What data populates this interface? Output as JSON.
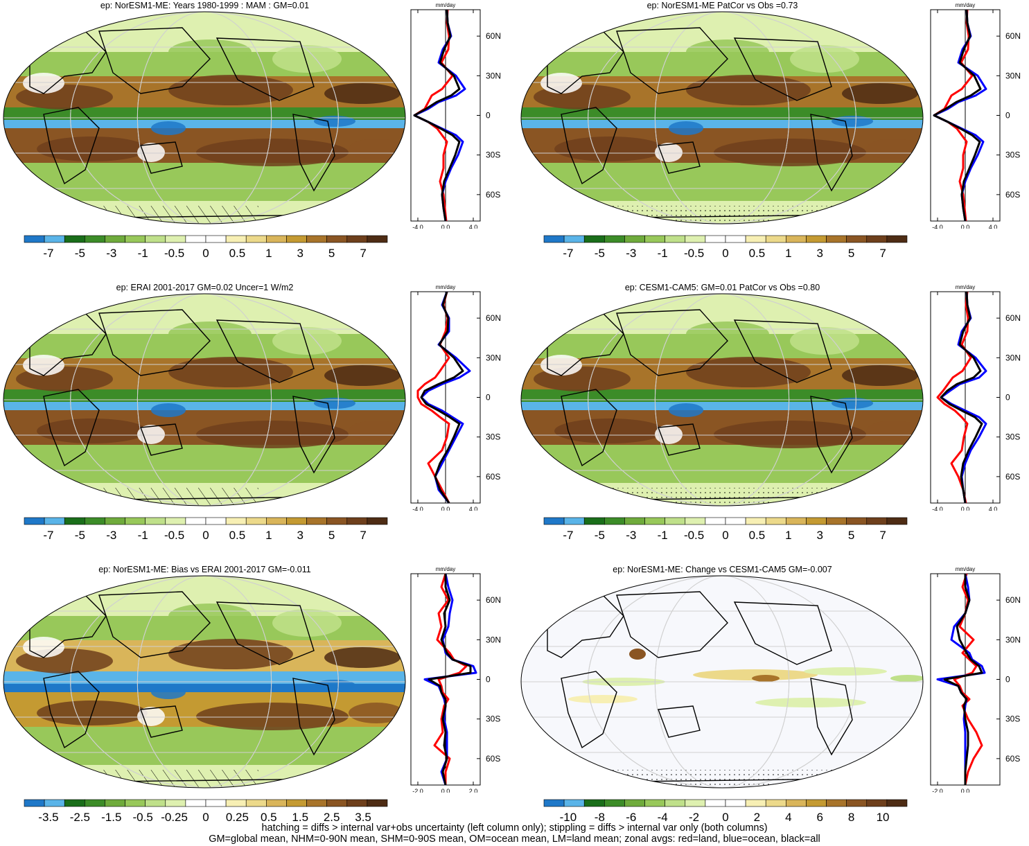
{
  "footer": {
    "line1": "hatching = diffs > internal var+obs uncertainty (left column only); stippling = diffs > internal var only (both columns)",
    "line2": "GM=global mean, NHM=0-90N mean, SHM=0-90S mean, OM=ocean mean, LM=land mean; zonal avgs: red=land, blue=ocean, black=all"
  },
  "colors": {
    "land_line": "#ff0000",
    "ocean_line": "#0000ff",
    "all_line": "#000000",
    "scale": [
      "#1f78c8",
      "#5ab4e8",
      "#1a6e1a",
      "#3c8c28",
      "#6fab3c",
      "#98c85a",
      "#bfe08a",
      "#def0b0",
      "#ffffff",
      "#ffffff",
      "#f7efb4",
      "#ecd98a",
      "#d9b55a",
      "#c49a32",
      "#a8742a",
      "#8a5523",
      "#6e3f1c",
      "#4e2c14"
    ]
  },
  "chart_data": [
    {
      "type": "heatmap",
      "title": "ep: NorESM1-ME: Years 1980-1999 : MAM : GM=0.01",
      "colorbar_labels": [
        "-7",
        "-5",
        "-3",
        "-1",
        "-0.5",
        "0",
        "0.5",
        "1",
        "3",
        "5",
        "7"
      ],
      "zonal_plot": {
        "unit": "mm/day",
        "x_ticks": [
          "-4.0",
          "0.0",
          "4.0"
        ],
        "y_ticks": [
          "60N",
          "30N",
          "0",
          "30S",
          "60S"
        ],
        "xlim": [
          -5,
          5
        ],
        "ylim": [
          -80,
          80
        ],
        "latitudes": [
          80,
          70,
          60,
          50,
          40,
          30,
          20,
          15,
          10,
          5,
          0,
          -5,
          -10,
          -15,
          -20,
          -30,
          -40,
          -50,
          -60,
          -70,
          -80
        ],
        "series": [
          {
            "name": "land",
            "values": [
              0.3,
              0.2,
              0.5,
              0.4,
              -0.6,
              1.0,
              -0.5,
              -2.0,
              -2.5,
              -3.0,
              -4.5,
              -2.5,
              -1.2,
              -0.5,
              0.2,
              -0.3,
              -0.3,
              -0.8,
              -0.3,
              -0.1,
              0.1
            ]
          },
          {
            "name": "ocean",
            "values": [
              0.2,
              0.3,
              0.8,
              -0.4,
              -1.0,
              1.5,
              2.8,
              1.5,
              -1.0,
              -2.5,
              -4.5,
              -2.5,
              -0.5,
              1.5,
              2.5,
              1.8,
              0.8,
              0.0,
              -0.5,
              -0.3,
              0.0
            ]
          },
          {
            "name": "all",
            "values": [
              0.2,
              0.3,
              0.7,
              -0.2,
              -0.8,
              1.2,
              2.0,
              0.8,
              -1.3,
              -2.8,
              -4.5,
              -2.5,
              -0.7,
              1.0,
              2.0,
              1.4,
              0.6,
              -0.2,
              -0.5,
              -0.3,
              0.0
            ]
          }
        ]
      }
    },
    {
      "type": "heatmap",
      "title": "ep: NorESM1-ME PatCor vs Obs =0.73",
      "colorbar_labels": [
        "-7",
        "-5",
        "-3",
        "-1",
        "-0.5",
        "0",
        "0.5",
        "1",
        "3",
        "5",
        "7"
      ],
      "zonal_plot": {
        "unit": "mm/day",
        "x_ticks": [
          "-4.0",
          "0.0",
          "4.0"
        ],
        "y_ticks": [
          "60N",
          "30N",
          "0",
          "30S",
          "60S"
        ],
        "xlim": [
          -5,
          5
        ],
        "ylim": [
          -80,
          80
        ],
        "latitudes": [
          80,
          70,
          60,
          50,
          40,
          30,
          20,
          15,
          10,
          5,
          0,
          -5,
          -10,
          -15,
          -20,
          -30,
          -40,
          -50,
          -60,
          -70,
          -80
        ],
        "series": [
          {
            "name": "land",
            "values": [
              0.3,
              0.2,
              0.5,
              0.4,
              -0.6,
              1.0,
              -0.5,
              -2.0,
              -2.5,
              -3.0,
              -4.5,
              -2.5,
              -1.2,
              -0.5,
              0.2,
              -0.3,
              -0.3,
              -0.8,
              -0.3,
              -0.1,
              0.1
            ]
          },
          {
            "name": "ocean",
            "values": [
              0.2,
              0.3,
              0.8,
              -0.4,
              -1.0,
              1.8,
              3.0,
              1.5,
              -1.0,
              -2.5,
              -4.5,
              -2.5,
              -0.5,
              1.5,
              2.6,
              1.8,
              0.8,
              0.0,
              -0.5,
              -0.3,
              0.0
            ]
          },
          {
            "name": "all",
            "values": [
              0.2,
              0.3,
              0.7,
              -0.2,
              -0.8,
              1.3,
              2.2,
              0.8,
              -1.3,
              -2.8,
              -4.5,
              -2.5,
              -0.7,
              1.0,
              2.1,
              1.4,
              0.6,
              -0.2,
              -0.5,
              -0.3,
              0.0
            ]
          }
        ]
      }
    },
    {
      "type": "heatmap",
      "title": "ep: ERAI 2001-2017 GM=0.02 Uncer=1 W/m2",
      "colorbar_labels": [
        "-7",
        "-5",
        "-3",
        "-1",
        "-0.5",
        "0",
        "0.5",
        "1",
        "3",
        "5",
        "7"
      ],
      "zonal_plot": {
        "unit": "mm/day",
        "x_ticks": [
          "-4.0",
          "0.0",
          "4.0"
        ],
        "y_ticks": [
          "60N",
          "30N",
          "0",
          "30S",
          "60S"
        ],
        "xlim": [
          -5,
          5
        ],
        "ylim": [
          -80,
          80
        ],
        "latitudes": [
          80,
          70,
          60,
          50,
          40,
          30,
          20,
          15,
          10,
          5,
          0,
          -5,
          -10,
          -15,
          -20,
          -30,
          -40,
          -50,
          -60,
          -70,
          -80
        ],
        "series": [
          {
            "name": "land",
            "values": [
              0.2,
              -0.3,
              0.3,
              0.0,
              -0.8,
              0.5,
              -0.8,
              -1.5,
              -3.0,
              -4.0,
              -4.0,
              -3.5,
              -2.0,
              -0.8,
              0.5,
              0.2,
              -0.5,
              -2.5,
              -1.5,
              -0.5,
              0.5
            ]
          },
          {
            "name": "ocean",
            "values": [
              0.2,
              -0.5,
              0.5,
              0.5,
              -1.0,
              1.5,
              3.5,
              2.0,
              -0.5,
              -2.5,
              -3.5,
              -2.5,
              -0.5,
              1.0,
              2.5,
              1.5,
              0.5,
              -0.5,
              -1.5,
              -1.0,
              0.5
            ]
          },
          {
            "name": "all",
            "values": [
              0.2,
              -0.4,
              0.4,
              0.3,
              -0.9,
              1.2,
              2.5,
              1.2,
              -1.0,
              -3.0,
              -3.5,
              -2.8,
              -1.0,
              0.6,
              2.0,
              1.2,
              0.3,
              -0.8,
              -1.5,
              -0.8,
              0.5
            ]
          }
        ]
      }
    },
    {
      "type": "heatmap",
      "title": "ep: CESM1-CAM5: GM=0.01 PatCor vs Obs =0.80",
      "colorbar_labels": [
        "-7",
        "-5",
        "-3",
        "-1",
        "-0.5",
        "0",
        "0.5",
        "1",
        "3",
        "5",
        "7"
      ],
      "zonal_plot": {
        "unit": "mm/day",
        "x_ticks": [
          "-4.0",
          "0.0",
          "4.0"
        ],
        "y_ticks": [
          "60N",
          "30N",
          "0",
          "30S",
          "60S"
        ],
        "xlim": [
          -5,
          5
        ],
        "ylim": [
          -80,
          80
        ],
        "latitudes": [
          80,
          70,
          60,
          50,
          40,
          30,
          20,
          15,
          10,
          5,
          0,
          -5,
          -10,
          -15,
          -20,
          -30,
          -40,
          -50,
          -60,
          -70,
          -80
        ],
        "series": [
          {
            "name": "land",
            "values": [
              0.3,
              0.1,
              0.4,
              0.3,
              -0.5,
              0.8,
              -0.4,
              -1.8,
              -2.5,
              -3.2,
              -4.0,
              -3.0,
              -1.5,
              -0.5,
              0.3,
              -0.2,
              -0.5,
              -2.0,
              -1.0,
              -0.3,
              0.1
            ]
          },
          {
            "name": "ocean",
            "values": [
              0.2,
              0.3,
              0.8,
              -0.5,
              -1.0,
              1.5,
              3.0,
              2.0,
              -0.8,
              -2.2,
              -3.5,
              -2.0,
              0.0,
              2.0,
              3.0,
              2.0,
              0.8,
              0.0,
              -0.5,
              -0.3,
              0.0
            ]
          },
          {
            "name": "all",
            "values": [
              0.2,
              0.3,
              0.7,
              -0.3,
              -0.8,
              1.2,
              2.2,
              1.2,
              -1.2,
              -2.6,
              -3.5,
              -2.3,
              -0.5,
              1.4,
              2.4,
              1.5,
              0.5,
              -0.3,
              -0.6,
              -0.3,
              0.0
            ]
          }
        ]
      }
    },
    {
      "type": "heatmap",
      "title": "ep: NorESM1-ME: Bias vs ERAI 2001-2017 GM=-0.011",
      "colorbar_labels": [
        "-3.5",
        "-2.5",
        "-1.5",
        "-0.5",
        "-0.25",
        "0",
        "0.25",
        "0.5",
        "1.5",
        "2.5",
        "3.5"
      ],
      "zonal_plot": {
        "unit": "mm/day",
        "x_ticks": [
          "-2.0",
          "0.0",
          "2.0"
        ],
        "y_ticks": [
          "60N",
          "30N",
          "0",
          "30S",
          "60S"
        ],
        "xlim": [
          -2.5,
          2.5
        ],
        "ylim": [
          -80,
          80
        ],
        "latitudes": [
          80,
          70,
          60,
          50,
          40,
          30,
          20,
          15,
          10,
          5,
          0,
          -5,
          -10,
          -15,
          -20,
          -30,
          -40,
          -50,
          -60,
          -70,
          -80
        ],
        "series": [
          {
            "name": "land",
            "values": [
              0.0,
              -0.3,
              0.2,
              -0.5,
              -0.3,
              -0.6,
              0.3,
              0.6,
              1.5,
              1.0,
              -0.5,
              -0.3,
              -0.2,
              0.2,
              -0.1,
              -0.3,
              -0.2,
              -0.8,
              0.3,
              0.0,
              0.0
            ]
          },
          {
            "name": "ocean",
            "values": [
              0.0,
              0.2,
              0.5,
              0.3,
              0.2,
              -0.2,
              0.0,
              0.5,
              2.0,
              2.2,
              -1.5,
              -0.5,
              -0.3,
              -0.1,
              0.0,
              -0.1,
              0.1,
              0.1,
              0.1,
              -0.3,
              0.0
            ]
          },
          {
            "name": "all",
            "values": [
              0.0,
              0.0,
              0.3,
              -0.1,
              0.0,
              -0.3,
              0.1,
              0.5,
              1.8,
              1.8,
              -1.2,
              -0.4,
              -0.3,
              0.0,
              0.0,
              -0.2,
              0.0,
              -0.1,
              0.1,
              -0.2,
              0.0
            ]
          }
        ]
      }
    },
    {
      "type": "heatmap",
      "title": "ep: NorESM1-ME: Change vs CESM1-CAM5 GM=-0.007",
      "colorbar_labels": [
        "-10",
        "-8",
        "-6",
        "-4",
        "-2",
        "0",
        "2",
        "4",
        "6",
        "8",
        "10"
      ],
      "zonal_plot": {
        "unit": "mm/day",
        "x_ticks": [
          "-2.0",
          "0.0"
        ],
        "y_ticks": [
          "60N",
          "30N",
          "0",
          "30S",
          "60S"
        ],
        "xlim": [
          -2.5,
          2.5
        ],
        "ylim": [
          -80,
          80
        ],
        "latitudes": [
          80,
          70,
          60,
          50,
          40,
          30,
          20,
          15,
          10,
          5,
          0,
          -5,
          -10,
          -15,
          -20,
          -30,
          -40,
          -50,
          -60,
          -70,
          -80
        ],
        "series": [
          {
            "name": "land",
            "values": [
              0.1,
              -0.2,
              0.2,
              0.0,
              -0.4,
              0.6,
              -0.2,
              0.3,
              0.8,
              0.5,
              -0.8,
              -0.4,
              -0.2,
              0.3,
              -0.2,
              0.2,
              0.8,
              1.2,
              0.6,
              0.2,
              0.0
            ]
          },
          {
            "name": "ocean",
            "values": [
              0.0,
              0.2,
              0.3,
              0.0,
              -0.8,
              -1.0,
              0.3,
              0.5,
              1.2,
              1.4,
              -2.0,
              -0.5,
              -0.3,
              0.1,
              0.0,
              -0.1,
              0.0,
              0.0,
              0.0,
              0.0,
              0.0
            ]
          },
          {
            "name": "all",
            "values": [
              0.0,
              0.0,
              0.3,
              0.0,
              -0.6,
              -0.4,
              0.1,
              0.4,
              1.0,
              1.2,
              -1.5,
              -0.5,
              -0.3,
              0.1,
              -0.1,
              0.0,
              0.2,
              0.2,
              0.1,
              0.0,
              0.0
            ]
          }
        ]
      }
    }
  ]
}
